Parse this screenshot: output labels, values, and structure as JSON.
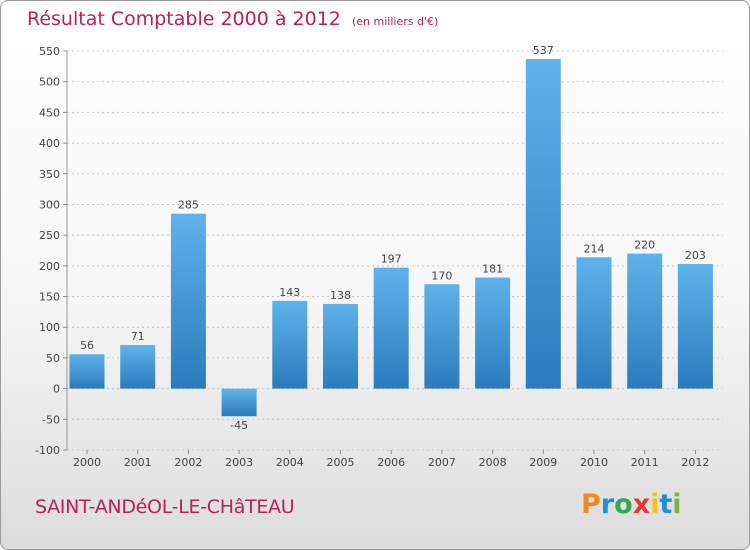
{
  "title": "Résultat Comptable 2000 à 2012",
  "unit": "(en milliers d'€)",
  "town": "SAINT-ANDéOL-LE-CHâTEAU",
  "brand": {
    "letters": [
      "P",
      "r",
      "o",
      "x",
      "i",
      "t",
      "i"
    ],
    "colors": [
      "#f08a1c",
      "#1f8fd6",
      "#2fa84f",
      "#e53935",
      "#f5c21b",
      "#1f8fd6",
      "#7cb342"
    ]
  },
  "colors": {
    "bar_top": "#5eb3ea",
    "bar_bottom": "#2b7bbd",
    "grid": "#c8c8c8",
    "axis_text": "#444444",
    "title": "#b4225a"
  },
  "chart_data": {
    "type": "bar",
    "categories": [
      "2000",
      "2001",
      "2002",
      "2003",
      "2004",
      "2005",
      "2006",
      "2007",
      "2008",
      "2009",
      "2010",
      "2011",
      "2012"
    ],
    "values": [
      56,
      71,
      285,
      -45,
      143,
      138,
      197,
      170,
      181,
      537,
      214,
      220,
      203
    ],
    "yticks": [
      -100,
      -50,
      0,
      50,
      100,
      150,
      200,
      250,
      300,
      350,
      400,
      450,
      500,
      550
    ],
    "ylim": [
      -100,
      550
    ],
    "grid": true,
    "legend": "none"
  }
}
